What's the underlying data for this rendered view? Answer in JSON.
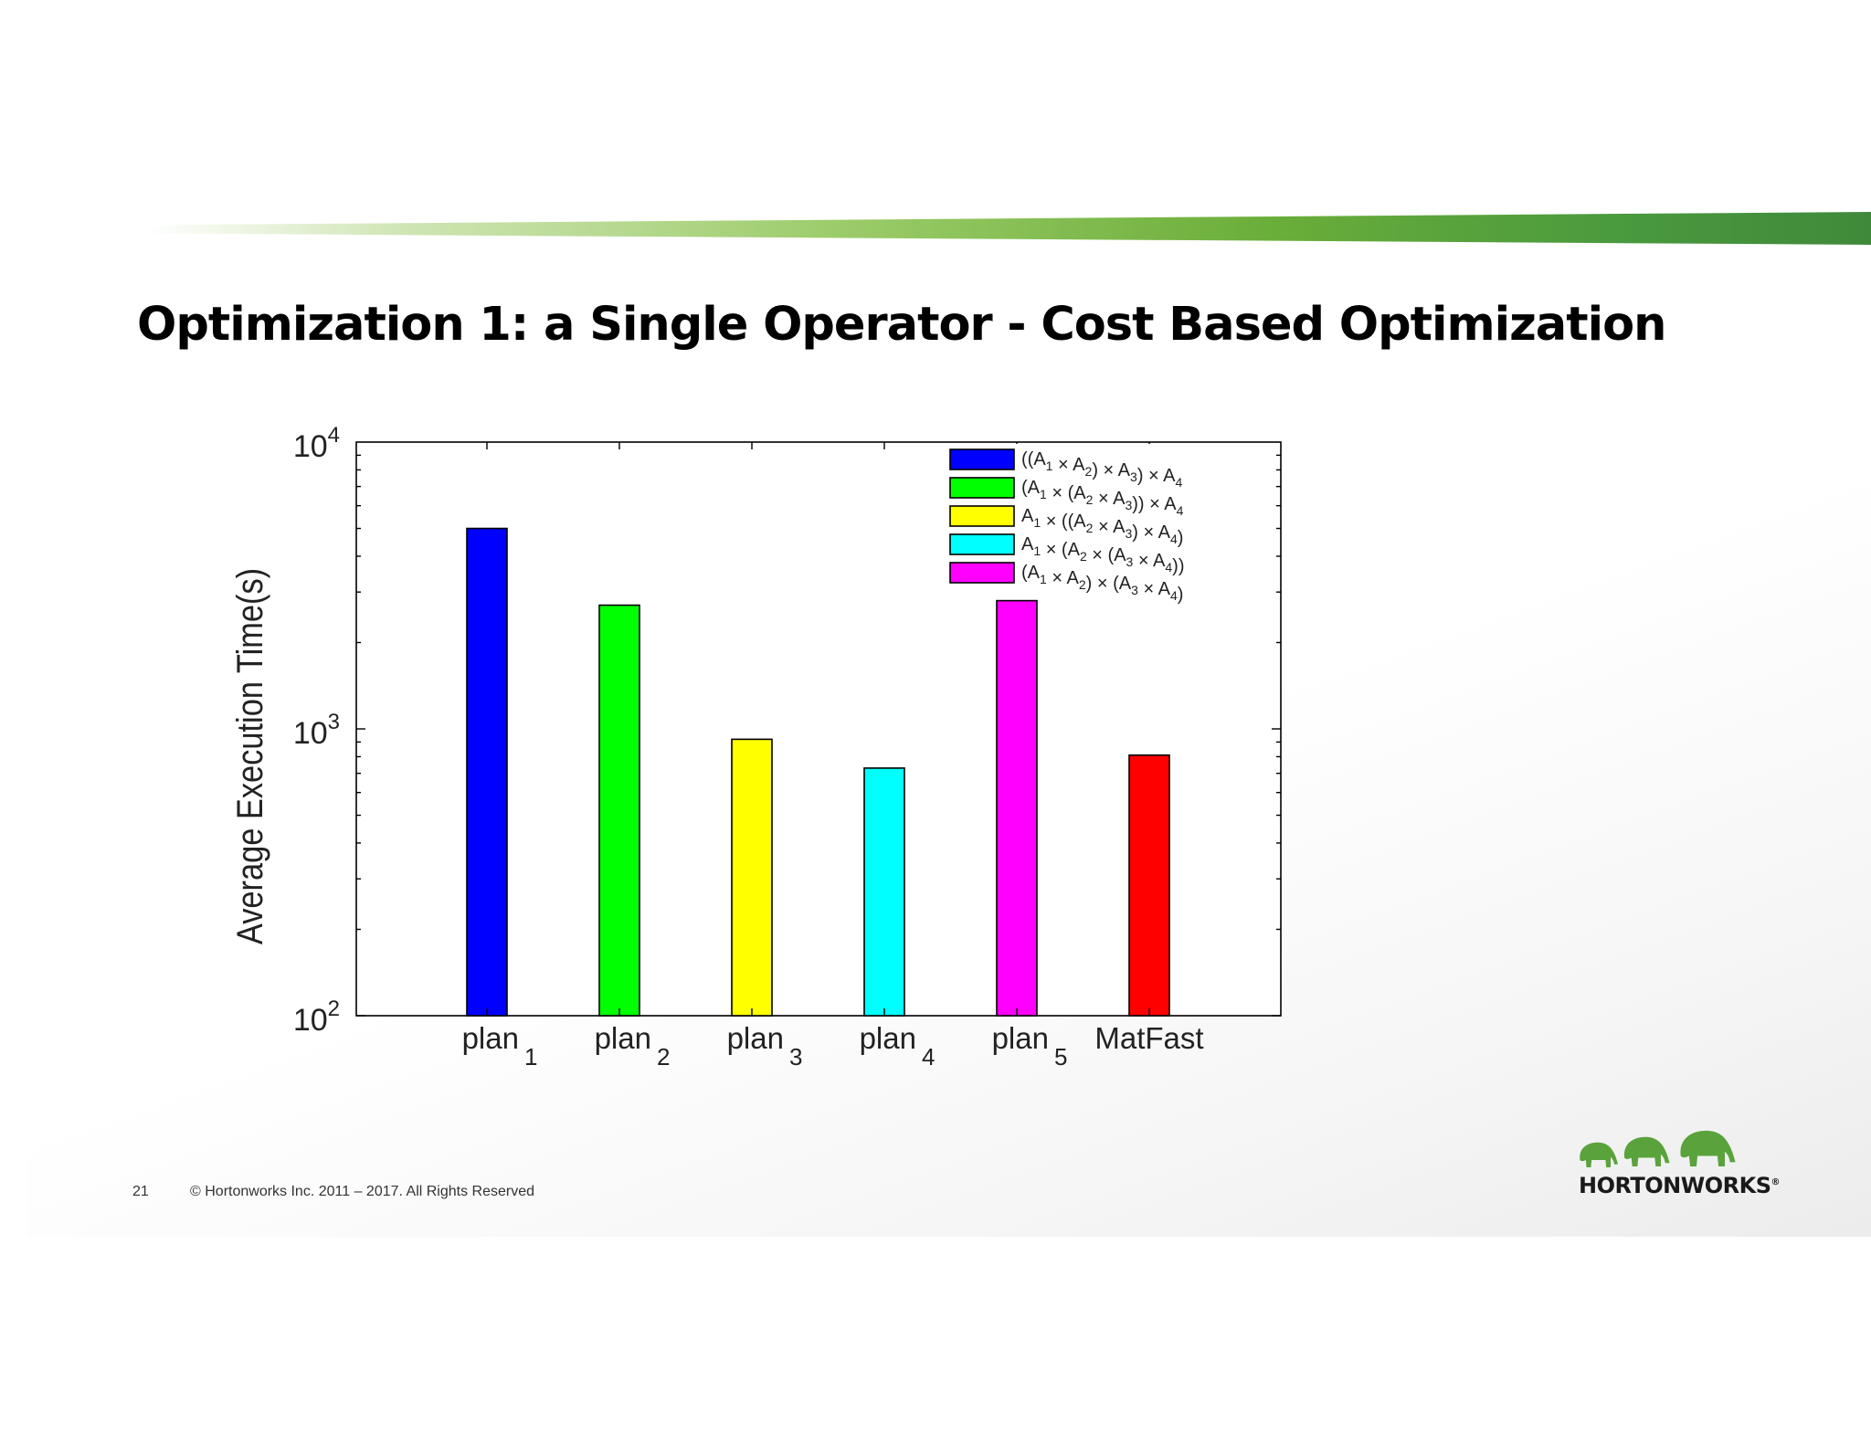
{
  "slide": {
    "title": "Optimization 1: a Single Operator - Cost Based Optimization",
    "page_number": "21",
    "copyright": "© Hortonworks Inc. 2011 – 2017. All Rights Reserved",
    "logo_text": "HORTONWORKS",
    "logo_mark": "®",
    "accent_color": "#5aa33c"
  },
  "chart_data": {
    "type": "bar",
    "title": "",
    "ylabel": "Average Execution Time(s)",
    "xlabel": "",
    "yscale": "log",
    "ylim": [
      100,
      10000
    ],
    "yticks": [
      {
        "base": "10",
        "exp": "2",
        "value": 100
      },
      {
        "base": "10",
        "exp": "3",
        "value": 1000
      },
      {
        "base": "10",
        "exp": "4",
        "value": 10000
      }
    ],
    "categories": [
      {
        "base": "plan",
        "sub": "1"
      },
      {
        "base": "plan",
        "sub": "2"
      },
      {
        "base": "plan",
        "sub": "3"
      },
      {
        "base": "plan",
        "sub": "4"
      },
      {
        "base": "plan",
        "sub": "5"
      },
      {
        "base": "MatFast",
        "sub": ""
      }
    ],
    "values": [
      5000,
      2700,
      920,
      730,
      2800,
      810
    ],
    "colors": [
      "#0000ff",
      "#00ff00",
      "#ffff00",
      "#00ffff",
      "#ff00ff",
      "#ff0000"
    ],
    "grid": false,
    "legend_position": "top-right",
    "legend": [
      {
        "color": "#0000ff",
        "label": [
          {
            "t": "(("
          },
          {
            "t": "A"
          },
          {
            "s": "1"
          },
          {
            "t": " × "
          },
          {
            "t": "A"
          },
          {
            "s": "2"
          },
          {
            "t": ") × "
          },
          {
            "t": "A"
          },
          {
            "s": "3"
          },
          {
            "t": ") × "
          },
          {
            "t": "A"
          },
          {
            "s": "4"
          }
        ]
      },
      {
        "color": "#00ff00",
        "label": [
          {
            "t": "("
          },
          {
            "t": "A"
          },
          {
            "s": "1"
          },
          {
            "t": " × ("
          },
          {
            "t": "A"
          },
          {
            "s": "2"
          },
          {
            "t": " × "
          },
          {
            "t": "A"
          },
          {
            "s": "3"
          },
          {
            "t": ")) × "
          },
          {
            "t": "A"
          },
          {
            "s": "4"
          }
        ]
      },
      {
        "color": "#ffff00",
        "label": [
          {
            "t": "A"
          },
          {
            "s": "1"
          },
          {
            "t": " × (("
          },
          {
            "t": "A"
          },
          {
            "s": "2"
          },
          {
            "t": " × "
          },
          {
            "t": "A"
          },
          {
            "s": "3"
          },
          {
            "t": ") × "
          },
          {
            "t": "A"
          },
          {
            "s": "4"
          },
          {
            "t": ")"
          }
        ]
      },
      {
        "color": "#00ffff",
        "label": [
          {
            "t": "A"
          },
          {
            "s": "1"
          },
          {
            "t": " × ("
          },
          {
            "t": "A"
          },
          {
            "s": "2"
          },
          {
            "t": " × ("
          },
          {
            "t": "A"
          },
          {
            "s": "3"
          },
          {
            "t": " × "
          },
          {
            "t": "A"
          },
          {
            "s": "4"
          },
          {
            "t": "))"
          }
        ]
      },
      {
        "color": "#ff00ff",
        "label": [
          {
            "t": "("
          },
          {
            "t": "A"
          },
          {
            "s": "1"
          },
          {
            "t": " × "
          },
          {
            "t": "A"
          },
          {
            "s": "2"
          },
          {
            "t": ") × ("
          },
          {
            "t": "A"
          },
          {
            "s": "3"
          },
          {
            "t": " × "
          },
          {
            "t": "A"
          },
          {
            "s": "4"
          },
          {
            "t": ")"
          }
        ]
      }
    ]
  }
}
